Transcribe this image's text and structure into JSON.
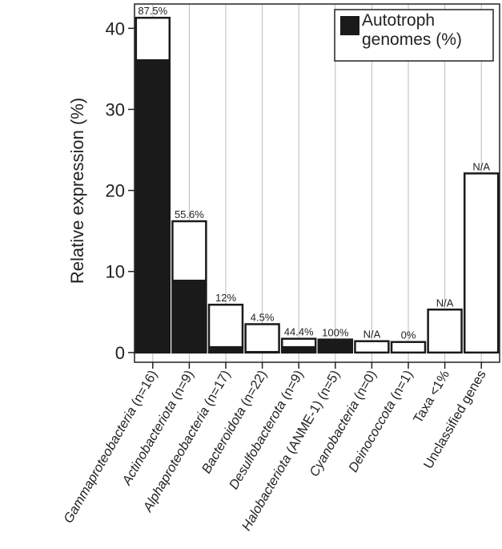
{
  "chart_data": {
    "type": "stacked_bar",
    "y_label": "Relative expression (%)",
    "categories": [
      "Gammaproteobacteria (n=16)",
      "Actinobacteriota (n=9)",
      "Alphaproteobacteria (n=17)",
      "Bacteroidota (n=22)",
      "Desulfobacterota (n=9)",
      "Halobacteriota (ANME-1) (n=5)",
      "Cyanobacteria (n=0)",
      "Deinococcota (n=1)",
      "Taxa <1%",
      "Unclassified genes"
    ],
    "italic_taxa": [
      true,
      true,
      true,
      true,
      true,
      true,
      true,
      true,
      false,
      false
    ],
    "series": [
      {
        "name": "Autotroph genomes (%)",
        "color": "#1a1a1a",
        "values": [
          36.2,
          9.0,
          0.8,
          0.2,
          0.8,
          1.6,
          0,
          0,
          0,
          0
        ]
      },
      {
        "color": "#ffffff",
        "values": [
          5.1,
          7.2,
          5.1,
          3.3,
          0.9,
          0,
          1.4,
          1.3,
          5.3,
          22.1
        ]
      }
    ],
    "bar_labels": [
      "87.5%",
      "55.6%",
      "12%",
      "4.5%",
      "44.4%",
      "100%",
      "N/A",
      "0%",
      "N/A",
      "N/A"
    ],
    "ylim": [
      -1.2,
      43
    ],
    "yticks": [
      0,
      10,
      20,
      30,
      40
    ],
    "grid": "x",
    "legend": "upper right"
  }
}
